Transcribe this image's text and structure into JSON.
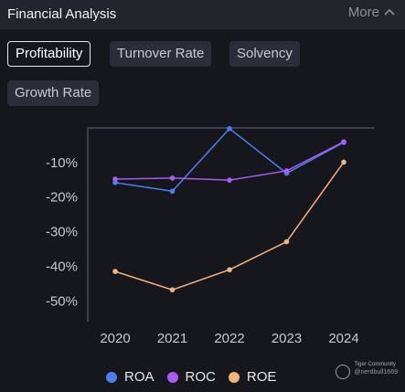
{
  "header": {
    "title": "Financial Analysis",
    "more_label": "More"
  },
  "tabs": [
    {
      "label": "Profitability",
      "active": true
    },
    {
      "label": "Turnover Rate",
      "active": false
    },
    {
      "label": "Solvency",
      "active": false
    },
    {
      "label": "Growth Rate",
      "active": false
    }
  ],
  "colors": {
    "background": "#16171c",
    "header": "#23252c",
    "roa": "#4f7cf3",
    "roc": "#a95cf0",
    "roe": "#f2b37d",
    "axis": "#4a4d57",
    "tick_text": "#c7c9d0"
  },
  "chart_data": {
    "type": "line",
    "categories": [
      "2020",
      "2021",
      "2022",
      "2023",
      "2024"
    ],
    "series": [
      {
        "name": "ROA",
        "color": "#4f7cf3",
        "values": [
          -15.8,
          -18.3,
          -0.2,
          -13.1,
          -4.2
        ]
      },
      {
        "name": "ROC",
        "color": "#a95cf0",
        "values": [
          -14.8,
          -14.5,
          -15.1,
          -12.4,
          -4.0
        ]
      },
      {
        "name": "ROE",
        "color": "#f2b37d",
        "values": [
          -41.5,
          -46.8,
          -41.0,
          -32.9,
          -9.9
        ]
      }
    ],
    "yticks": [
      -10,
      -20,
      -30,
      -40,
      -50
    ],
    "ytick_labels": [
      "-10%",
      "-20%",
      "-30%",
      "-40%",
      "-50%"
    ],
    "ylim": [
      -56,
      0
    ],
    "grid": false,
    "legend": "bottom"
  },
  "watermark": {
    "brand": "Tiger Community",
    "user": "@nerdbull1669"
  }
}
